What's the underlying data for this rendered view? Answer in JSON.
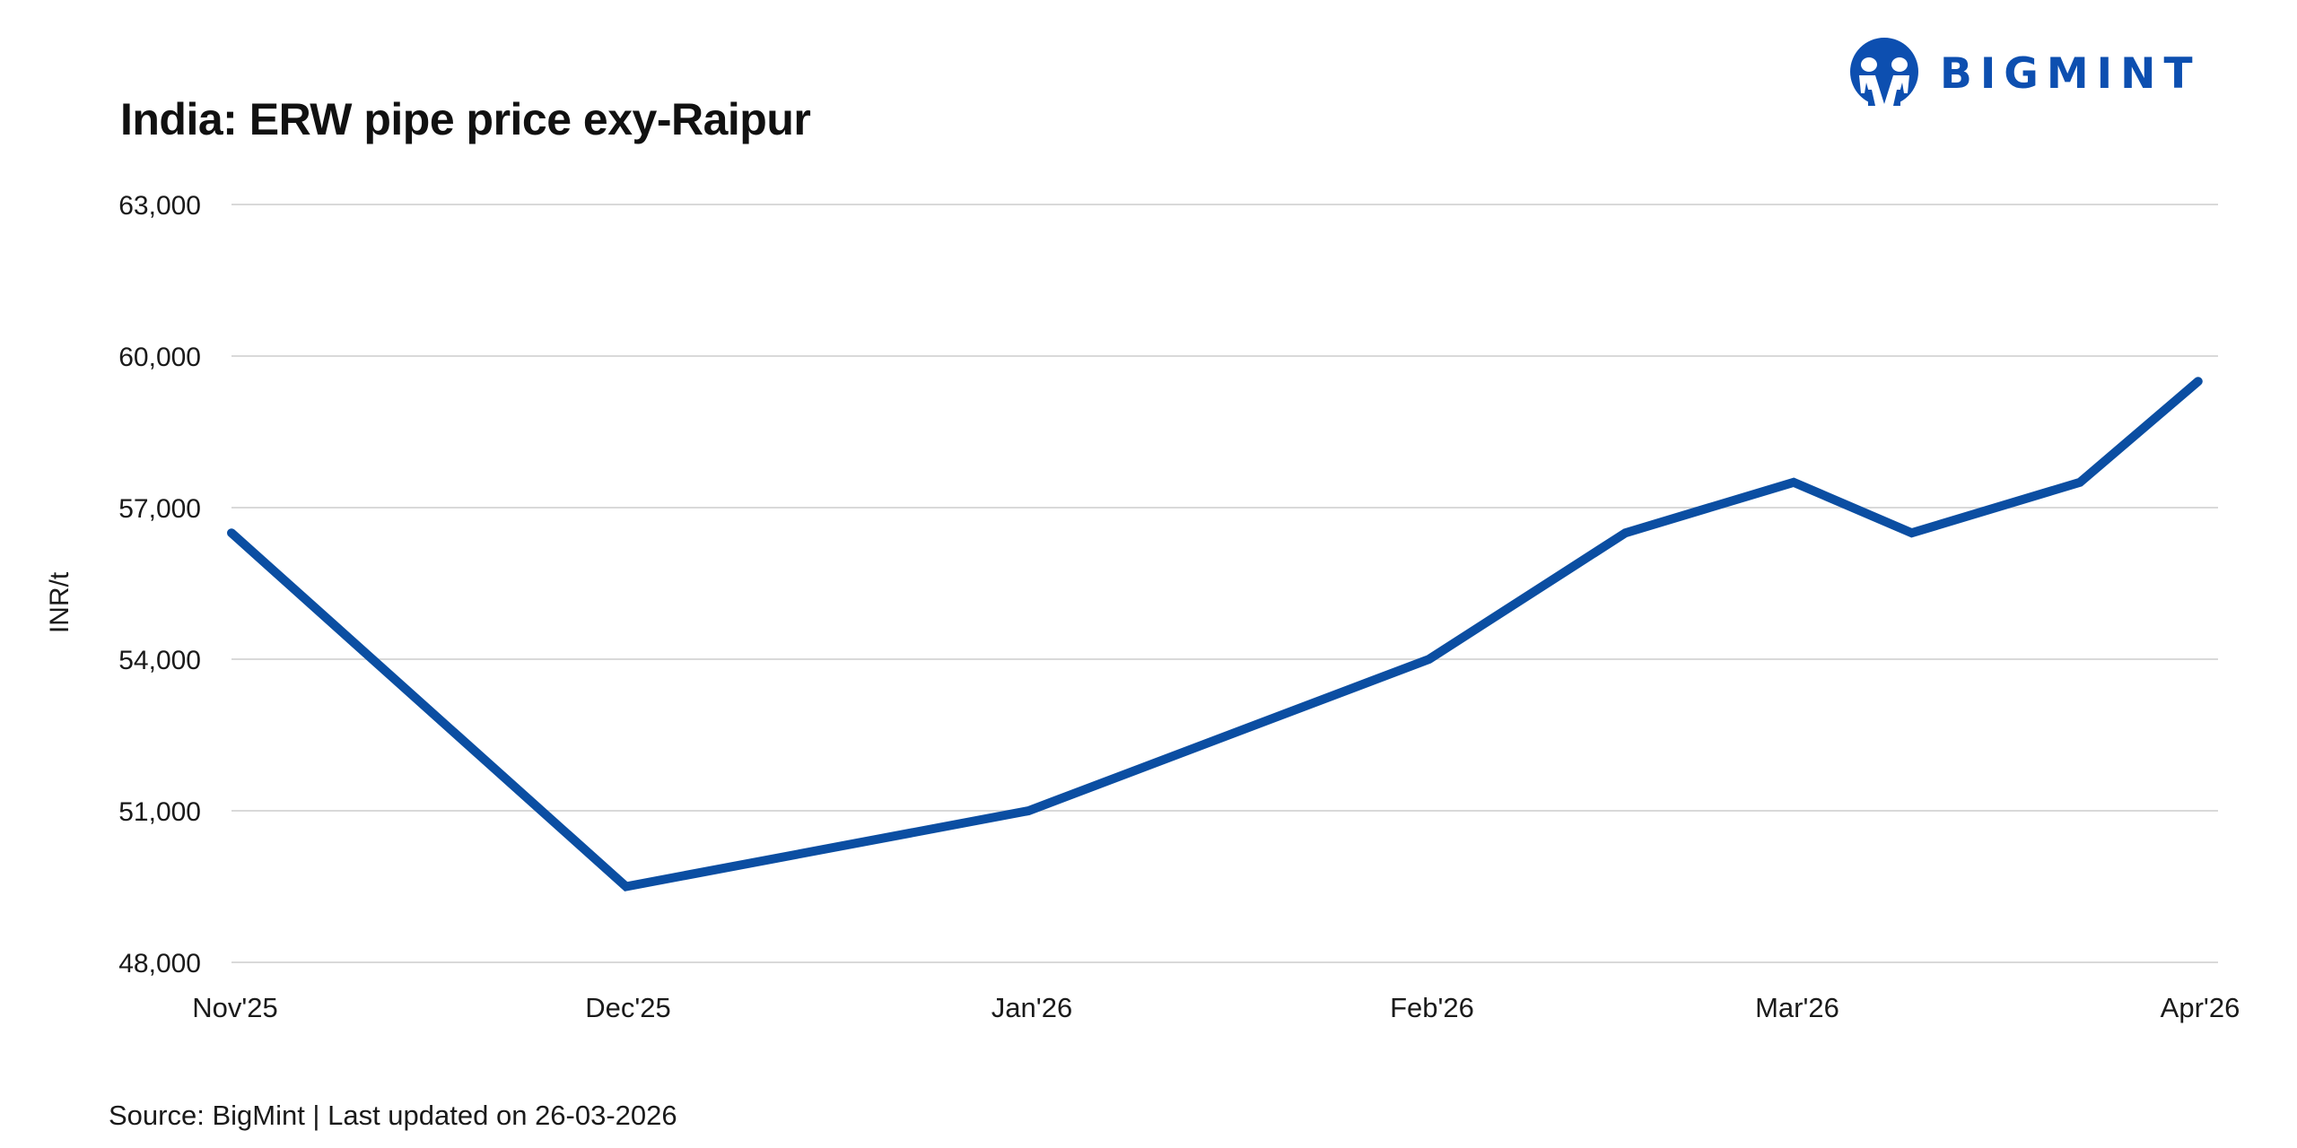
{
  "header": {
    "title": "India: ERW pipe price exy-Raipur",
    "logo_text": "BIGMINT",
    "logo_icon": "bigmint-people-icon",
    "brand_color": "#0d4fb0"
  },
  "footer": {
    "source": "Source: BigMint | Last updated on 26-03-2026"
  },
  "colors": {
    "line": "#0b4ea2",
    "grid": "#d9d9d9",
    "text": "#1a1a1a"
  },
  "chart_data": {
    "type": "line",
    "title": "India: ERW pipe price exy-Raipur",
    "xlabel": "",
    "ylabel": "INR/t",
    "ylim": [
      48000,
      63000
    ],
    "yticks": [
      48000,
      51000,
      54000,
      57000,
      60000,
      63000
    ],
    "ytick_labels": [
      "48,000",
      "51,000",
      "54,000",
      "57,000",
      "60,000",
      "63,000"
    ],
    "xtick_labels": [
      "Nov'25",
      "Dec'25",
      "Jan'26",
      "Feb'26",
      "Mar'26",
      "Apr'26"
    ],
    "grid": true,
    "legend": null,
    "series": [
      {
        "name": "ERW pipe price exy-Raipur",
        "points": [
          {
            "x": "Nov'25",
            "pos": 0.0,
            "y": 56500
          },
          {
            "x": "Dec'25",
            "pos": 0.197,
            "y": 49500
          },
          {
            "x": "Jan'26",
            "pos": 0.398,
            "y": 51000
          },
          {
            "x": "Feb'26",
            "pos": 0.598,
            "y": 54000
          },
          {
            "x": "mid-Feb'26",
            "pos": 0.696,
            "y": 56500
          },
          {
            "x": "Mar'26",
            "pos": 0.78,
            "y": 57500
          },
          {
            "x": "mid-Mar'26",
            "pos": 0.839,
            "y": 56500
          },
          {
            "x": "late-Mar'26",
            "pos": 0.923,
            "y": 57500
          },
          {
            "x": "Apr'26",
            "pos": 0.982,
            "y": 59500
          }
        ]
      }
    ],
    "source": "Source: BigMint | Last updated on 26-03-2026"
  }
}
